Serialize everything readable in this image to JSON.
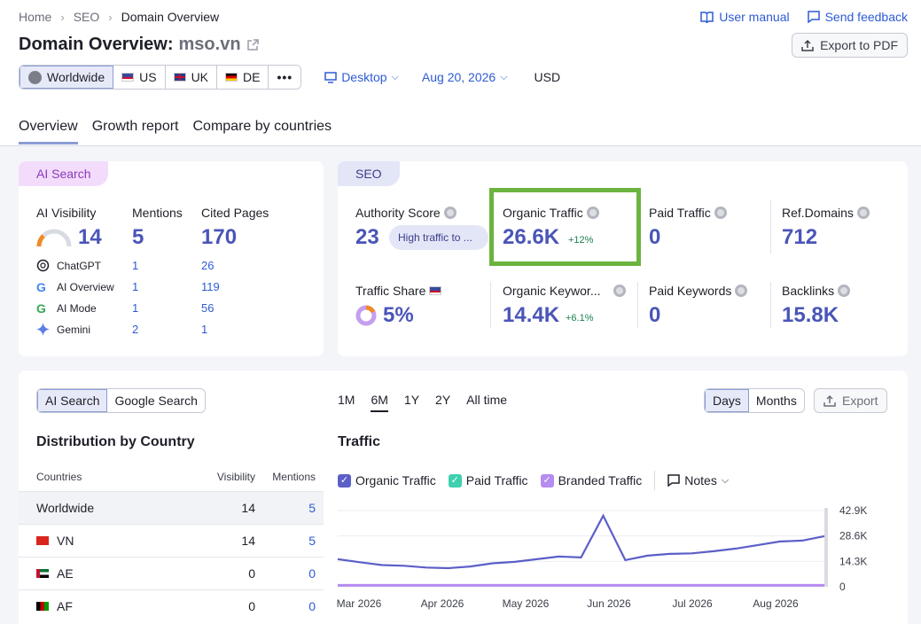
{
  "breadcrumb": [
    "Home",
    "SEO",
    "Domain Overview"
  ],
  "top_links": {
    "manual": "User manual",
    "feedback": "Send feedback"
  },
  "title": {
    "prefix": "Domain Overview:",
    "domain": "mso.vn"
  },
  "export_pdf": "Export to PDF",
  "databases": [
    {
      "label": "Worldwide"
    },
    {
      "label": "US"
    },
    {
      "label": "UK"
    },
    {
      "label": "DE"
    }
  ],
  "device": "Desktop",
  "date": "Aug 20, 2026",
  "currency": "USD",
  "tabs": [
    "Overview",
    "Growth report",
    "Compare by countries"
  ],
  "ai_card": {
    "label": "AI Search",
    "visibility_label": "AI Visibility",
    "visibility_value": "14",
    "mentions_label": "Mentions",
    "mentions_value": "5",
    "cited_label": "Cited Pages",
    "cited_value": "170",
    "sources": [
      {
        "name": "ChatGPT",
        "mentions": "1",
        "cited": "26"
      },
      {
        "name": "AI Overview",
        "mentions": "1",
        "cited": "119"
      },
      {
        "name": "AI Mode",
        "mentions": "1",
        "cited": "56"
      },
      {
        "name": "Gemini",
        "mentions": "2",
        "cited": "1"
      }
    ]
  },
  "seo_card": {
    "label": "SEO",
    "authority_label": "Authority Score",
    "authority_value": "23",
    "authority_badge": "High traffic to ...",
    "organic_label": "Organic Traffic",
    "organic_value": "26.6K",
    "organic_change": "+12%",
    "paid_label": "Paid Traffic",
    "paid_value": "0",
    "refdomains_label": "Ref.Domains",
    "refdomains_value": "712",
    "share_label": "Traffic Share",
    "share_value": "5%",
    "okw_label": "Organic Keywor...",
    "okw_value": "14.4K",
    "okw_change": "+6.1%",
    "pkw_label": "Paid Keywords",
    "pkw_value": "0",
    "backlinks_label": "Backlinks",
    "backlinks_value": "15.8K"
  },
  "lower": {
    "toggle": [
      "AI Search",
      "Google Search"
    ],
    "ranges": [
      "1M",
      "6M",
      "1Y",
      "2Y",
      "All time"
    ],
    "period": [
      "Days",
      "Months"
    ],
    "export": "Export",
    "dist_title": "Distribution by Country",
    "traffic_title": "Traffic",
    "table_headers": {
      "countries": "Countries",
      "visibility": "Visibility",
      "mentions": "Mentions"
    },
    "rows": [
      {
        "country": "Worldwide",
        "visibility": "14",
        "mentions": "5"
      },
      {
        "country": "VN",
        "visibility": "14",
        "mentions": "5"
      },
      {
        "country": "AE",
        "visibility": "0",
        "mentions": "0"
      },
      {
        "country": "AF",
        "visibility": "0",
        "mentions": "0"
      }
    ],
    "legend": [
      "Organic Traffic",
      "Paid Traffic",
      "Branded Traffic"
    ],
    "notes": "Notes"
  },
  "colors": {
    "accent": "#4a55b8",
    "link": "#2e5bd4",
    "highlight": "#6cb33f",
    "organic_line": "#5b5fc7",
    "branded_line": "#b58cf0"
  },
  "chart_data": {
    "type": "line",
    "x_ticks": [
      "Mar 2026",
      "Apr 2026",
      "May 2026",
      "Jun 2026",
      "Jul 2026",
      "Aug 2026"
    ],
    "y_ticks": [
      "42.9K",
      "28.6K",
      "14.3K",
      "0"
    ],
    "ylim": [
      0,
      42900
    ],
    "series": [
      {
        "name": "Organic Traffic",
        "values": [
          15500,
          13800,
          12200,
          11800,
          10800,
          10500,
          11400,
          13200,
          14000,
          15500,
          17000,
          16500,
          40000,
          15000,
          17500,
          18500,
          18800,
          20000,
          21500,
          23500,
          25500,
          26000,
          28500
        ]
      },
      {
        "name": "Branded Traffic",
        "values": [
          800,
          800,
          800,
          800,
          800,
          800,
          800,
          800,
          800,
          800,
          800,
          800,
          800,
          800,
          800,
          800,
          800,
          800,
          800,
          800,
          800,
          800,
          800
        ]
      }
    ]
  }
}
